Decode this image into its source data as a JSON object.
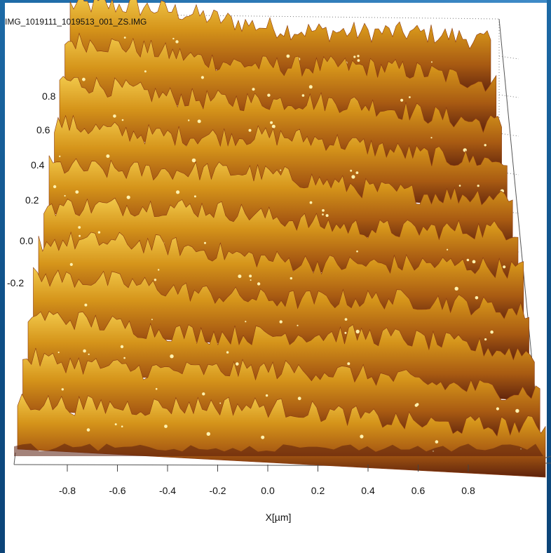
{
  "window": {
    "title": "IMG_1019111_1019513_001_ZS.IMG"
  },
  "chart_data": {
    "type": "surface",
    "title": "IMG_1019111_1019513_001_ZS.IMG",
    "xlabel": "X[µm]",
    "ylabel": "",
    "xlim": [
      -1,
      1
    ],
    "ylim": [
      -0.4,
      1.0
    ],
    "x_ticks": [
      "-0.8",
      "-0.6",
      "-0.4",
      "-0.2",
      "0.0",
      "0.2",
      "0.4",
      "0.6",
      "0.8"
    ],
    "y_ticks": [
      "0.8",
      "0.6",
      "0.4",
      "0.2",
      "0.0",
      "-0.2"
    ],
    "grid": true,
    "ridge_count": 11,
    "colormap": [
      "#5a1d0c",
      "#8c3a10",
      "#b8690f",
      "#d89a1c",
      "#efcf55",
      "#fff2b0"
    ]
  }
}
